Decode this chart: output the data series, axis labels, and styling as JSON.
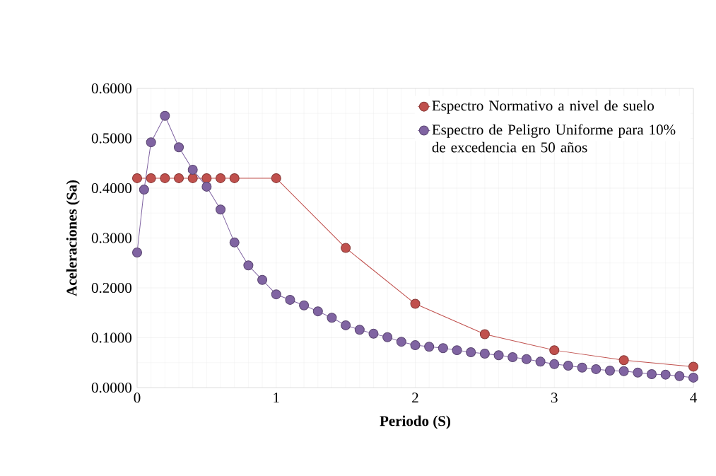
{
  "chart_data": {
    "type": "line",
    "xlabel": "Periodo (S)",
    "ylabel": "Aceleraciones (Sa)",
    "xlim": [
      0,
      4
    ],
    "ylim": [
      0,
      0.6
    ],
    "xticks": [
      0,
      1,
      2,
      3,
      4
    ],
    "yticks": [
      {
        "value": 0,
        "label": "0.0000"
      },
      {
        "value": 0.1,
        "label": "0.1000"
      },
      {
        "value": 0.2,
        "label": "0.2000"
      },
      {
        "value": 0.3,
        "label": "0.3000"
      },
      {
        "value": 0.4,
        "label": "0.4000"
      },
      {
        "value": 0.5,
        "label": "0.5000"
      },
      {
        "value": 0.6,
        "label": "0.6000"
      }
    ],
    "grid": true,
    "legend": "top right",
    "marker": "circle",
    "line_style": "solid",
    "series": [
      {
        "name": "Espectro Normativo a nivel de suelo",
        "color": "#c0504d",
        "x": [
          0,
          0.1,
          0.2,
          0.3,
          0.4,
          0.5,
          0.6,
          0.7,
          1.0,
          1.5,
          2.0,
          2.5,
          3.0,
          3.5,
          4.0
        ],
        "values": [
          0.42,
          0.42,
          0.42,
          0.42,
          0.42,
          0.42,
          0.42,
          0.42,
          0.42,
          0.28,
          0.168,
          0.107,
          0.075,
          0.055,
          0.042
        ]
      },
      {
        "name": "Espectro de Peligro Uniforme para 10% de excedencia en 50 años",
        "color": "#8064a2",
        "x": [
          0,
          0.05,
          0.1,
          0.2,
          0.3,
          0.4,
          0.5,
          0.6,
          0.7,
          0.8,
          0.9,
          1.0,
          1.1,
          1.2,
          1.3,
          1.4,
          1.5,
          1.6,
          1.7,
          1.8,
          1.9,
          2.0,
          2.1,
          2.2,
          2.3,
          2.4,
          2.5,
          2.6,
          2.7,
          2.8,
          2.9,
          3.0,
          3.1,
          3.2,
          3.3,
          3.4,
          3.5,
          3.6,
          3.7,
          3.8,
          3.9,
          4.0
        ],
        "values": [
          0.271,
          0.397,
          0.492,
          0.545,
          0.482,
          0.437,
          0.403,
          0.357,
          0.291,
          0.245,
          0.216,
          0.187,
          0.176,
          0.165,
          0.153,
          0.14,
          0.125,
          0.116,
          0.108,
          0.101,
          0.092,
          0.085,
          0.082,
          0.079,
          0.075,
          0.071,
          0.068,
          0.065,
          0.061,
          0.057,
          0.052,
          0.047,
          0.044,
          0.04,
          0.037,
          0.034,
          0.033,
          0.03,
          0.027,
          0.026,
          0.023,
          0.02
        ]
      }
    ]
  }
}
